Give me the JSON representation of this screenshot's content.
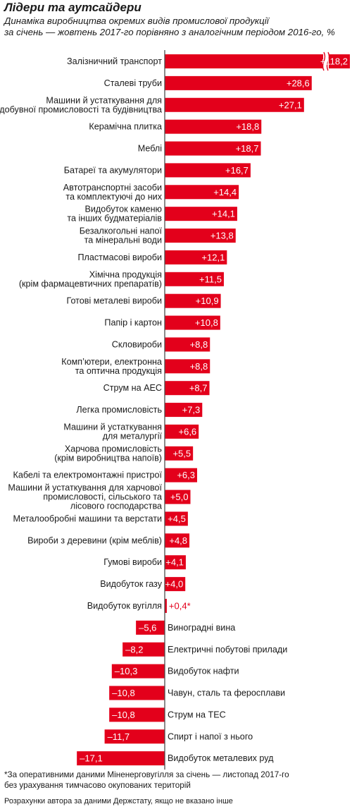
{
  "chart_data": {
    "type": "bar",
    "orientation": "horizontal",
    "title": "Лідери та аутсайдери",
    "subtitle_lines": [
      "Динаміка виробництва окремих видів промислової продукції",
      "за січень — жовтень 2017-го порівняно з аналогічним періодом 2016-го, %"
    ],
    "colors": {
      "bar": "#e3001b",
      "axis": "#4d4d4d",
      "label_outside": "#e3001b"
    },
    "axis_break_category": "Залізничний транспорт",
    "items": [
      {
        "label": [
          "Залізничний транспорт"
        ],
        "value": 118.2,
        "value_label": "+118,2"
      },
      {
        "label": [
          "Сталеві труби"
        ],
        "value": 28.6,
        "value_label": "+28,6"
      },
      {
        "label": [
          "Машини й устаткування для",
          "добувної промисловості та будівництва"
        ],
        "value": 27.1,
        "value_label": "+27,1"
      },
      {
        "label": [
          "Керамічна плитка"
        ],
        "value": 18.8,
        "value_label": "+18,8"
      },
      {
        "label": [
          "Меблі"
        ],
        "value": 18.7,
        "value_label": "+18,7"
      },
      {
        "label": [
          "Батареї та акумулятори"
        ],
        "value": 16.7,
        "value_label": "+16,7"
      },
      {
        "label": [
          "Автотранспортні засоби",
          "та комплектуючі до них"
        ],
        "value": 14.4,
        "value_label": "+14,4"
      },
      {
        "label": [
          "Видобуток каменю",
          "та інших будматеріалів"
        ],
        "value": 14.1,
        "value_label": "+14,1"
      },
      {
        "label": [
          "Безалкогольні напої",
          "та мінеральні води"
        ],
        "value": 13.8,
        "value_label": "+13,8"
      },
      {
        "label": [
          "Пластмасові вироби"
        ],
        "value": 12.1,
        "value_label": "+12,1"
      },
      {
        "label": [
          "Хімічна продукція",
          "(крім фармацевтичних препаратів)"
        ],
        "value": 11.5,
        "value_label": "+11,5"
      },
      {
        "label": [
          "Готові металеві вироби"
        ],
        "value": 10.9,
        "value_label": "+10,9"
      },
      {
        "label": [
          "Папір і картон"
        ],
        "value": 10.8,
        "value_label": "+10,8"
      },
      {
        "label": [
          "Скловироби"
        ],
        "value": 8.8,
        "value_label": "+8,8"
      },
      {
        "label": [
          "Комп’ютери, електронна",
          "та оптична продукція"
        ],
        "value": 8.8,
        "value_label": "+8,8"
      },
      {
        "label": [
          "Струм на АЕС"
        ],
        "value": 8.7,
        "value_label": "+8,7"
      },
      {
        "label": [
          "Легка промисловість"
        ],
        "value": 7.3,
        "value_label": "+7,3"
      },
      {
        "label": [
          "Машини й устаткування",
          "для металургії"
        ],
        "value": 6.6,
        "value_label": "+6,6"
      },
      {
        "label": [
          "Харчова промисловість",
          "(крім виробництва напоїв)"
        ],
        "value": 5.5,
        "value_label": "+5,5"
      },
      {
        "label": [
          "Кабелі та електромонтажні пристрої"
        ],
        "value": 6.3,
        "value_label": "+6,3"
      },
      {
        "label": [
          "Машини й устаткування для харчової",
          "промисловості, сільського та",
          "лісового господарства"
        ],
        "value": 5.0,
        "value_label": "+5,0"
      },
      {
        "label": [
          "Металообробні машини та верстати"
        ],
        "value": 4.5,
        "value_label": "+4,5"
      },
      {
        "label": [
          "Вироби з деревини (крім меблів)"
        ],
        "value": 4.8,
        "value_label": "+4,8"
      },
      {
        "label": [
          "Гумові вироби"
        ],
        "value": 4.1,
        "value_label": "+4,1"
      },
      {
        "label": [
          "Видобуток газу"
        ],
        "value": 4.0,
        "value_label": "+4,0"
      },
      {
        "label": [
          "Видобуток вугілля"
        ],
        "value": 0.4,
        "value_label": "+0,4*"
      },
      {
        "label": [
          "Виноградні вина"
        ],
        "value": -5.6,
        "value_label": "–5,6"
      },
      {
        "label": [
          "Електричні побутові прилади"
        ],
        "value": -8.2,
        "value_label": "–8,2"
      },
      {
        "label": [
          "Видобуток нафти"
        ],
        "value": -10.3,
        "value_label": "–10,3"
      },
      {
        "label": [
          "Чавун, сталь та феросплави"
        ],
        "value": -10.8,
        "value_label": "–10,8"
      },
      {
        "label": [
          "Струм на ТЕС"
        ],
        "value": -10.8,
        "value_label": "–10,8"
      },
      {
        "label": [
          "Спирт і напої з нього"
        ],
        "value": -11.7,
        "value_label": "–11,7"
      },
      {
        "label": [
          "Видобуток металевих руд"
        ],
        "value": -17.1,
        "value_label": "–17,1"
      }
    ]
  },
  "footnote_lines": [
    "*За оперативними даними Міненерговугілля за січень — листопад 2017-го",
    "без урахування тимчасово окупованих територій"
  ],
  "source": "Розрахунки автора за даними Держстату, якщо не вказано інше"
}
